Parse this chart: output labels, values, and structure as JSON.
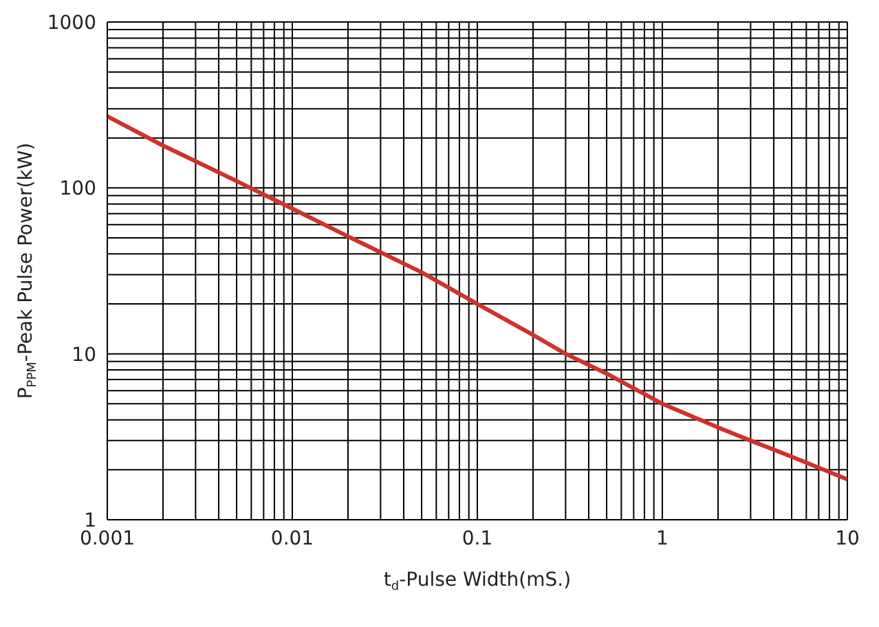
{
  "chart_data": {
    "type": "line",
    "xlabel": "t$_{d}$-Pulse Width(mS.)",
    "ylabel": "P$_{PPM}$-Peak Pulse Power(kW)",
    "log": "xy",
    "grid": true,
    "marker": "none",
    "line_style": "solid",
    "xlim": [
      0.001,
      10
    ],
    "ylim": [
      1,
      1000
    ],
    "xticks": [
      0.001,
      {
        "value": 0.002,
        "label": null
      },
      {
        "value": 0.003,
        "label": null
      },
      {
        "value": 0.004,
        "label": null
      },
      {
        "value": 0.005,
        "label": null
      },
      {
        "value": 0.006,
        "label": null
      },
      {
        "value": 0.007,
        "label": null
      },
      {
        "value": 0.008,
        "label": null
      },
      {
        "value": 0.009,
        "label": null
      },
      0.01,
      {
        "value": 0.02,
        "label": null
      },
      {
        "value": 0.03,
        "label": null
      },
      {
        "value": 0.04,
        "label": null
      },
      {
        "value": 0.05,
        "label": null
      },
      {
        "value": 0.06,
        "label": null
      },
      {
        "value": 0.07,
        "label": null
      },
      {
        "value": 0.08,
        "label": null
      },
      {
        "value": 0.09,
        "label": null
      },
      0.1,
      {
        "value": 0.2,
        "label": null
      },
      {
        "value": 0.3,
        "label": null
      },
      {
        "value": 0.4,
        "label": null
      },
      {
        "value": 0.5,
        "label": null
      },
      {
        "value": 0.6,
        "label": null
      },
      {
        "value": 0.7,
        "label": null
      },
      {
        "value": 0.8,
        "label": null
      },
      {
        "value": 0.9,
        "label": null
      },
      1,
      {
        "value": 2,
        "label": null
      },
      {
        "value": 3,
        "label": null
      },
      {
        "value": 4,
        "label": null
      },
      {
        "value": 5,
        "label": null
      },
      {
        "value": 6,
        "label": null
      },
      {
        "value": 7,
        "label": null
      },
      {
        "value": 8,
        "label": null
      },
      {
        "value": 9,
        "label": null
      },
      10
    ],
    "yticks": [
      1,
      {
        "value": 2,
        "label": null
      },
      {
        "value": 3,
        "label": null
      },
      {
        "value": 4,
        "label": null
      },
      {
        "value": 5,
        "label": null
      },
      {
        "value": 6,
        "label": null
      },
      {
        "value": 7,
        "label": null
      },
      {
        "value": 8,
        "label": null
      },
      {
        "value": 9,
        "label": null
      },
      10,
      {
        "value": 20,
        "label": null
      },
      {
        "value": 30,
        "label": null
      },
      {
        "value": 40,
        "label": null
      },
      {
        "value": 50,
        "label": null
      },
      {
        "value": 60,
        "label": null
      },
      {
        "value": 70,
        "label": null
      },
      {
        "value": 80,
        "label": null
      },
      {
        "value": 90,
        "label": null
      },
      100,
      {
        "value": 200,
        "label": null
      },
      {
        "value": 300,
        "label": null
      },
      {
        "value": 400,
        "label": null
      },
      {
        "value": 500,
        "label": null
      },
      {
        "value": 600,
        "label": null
      },
      {
        "value": 700,
        "label": null
      },
      {
        "value": 800,
        "label": null
      },
      {
        "value": 900,
        "label": null
      },
      1000
    ],
    "series": [
      {
        "color": "#d0312d",
        "x": [
          0.001,
          0.002,
          0.005,
          0.01,
          0.02,
          0.05,
          0.1,
          0.2,
          0.3,
          0.5,
          1,
          2,
          3,
          5,
          10
        ],
        "values": [
          270,
          180,
          110,
          75,
          51,
          31,
          20,
          13,
          10,
          7.6,
          5,
          3.6,
          3,
          2.4,
          1.75
        ]
      }
    ]
  }
}
